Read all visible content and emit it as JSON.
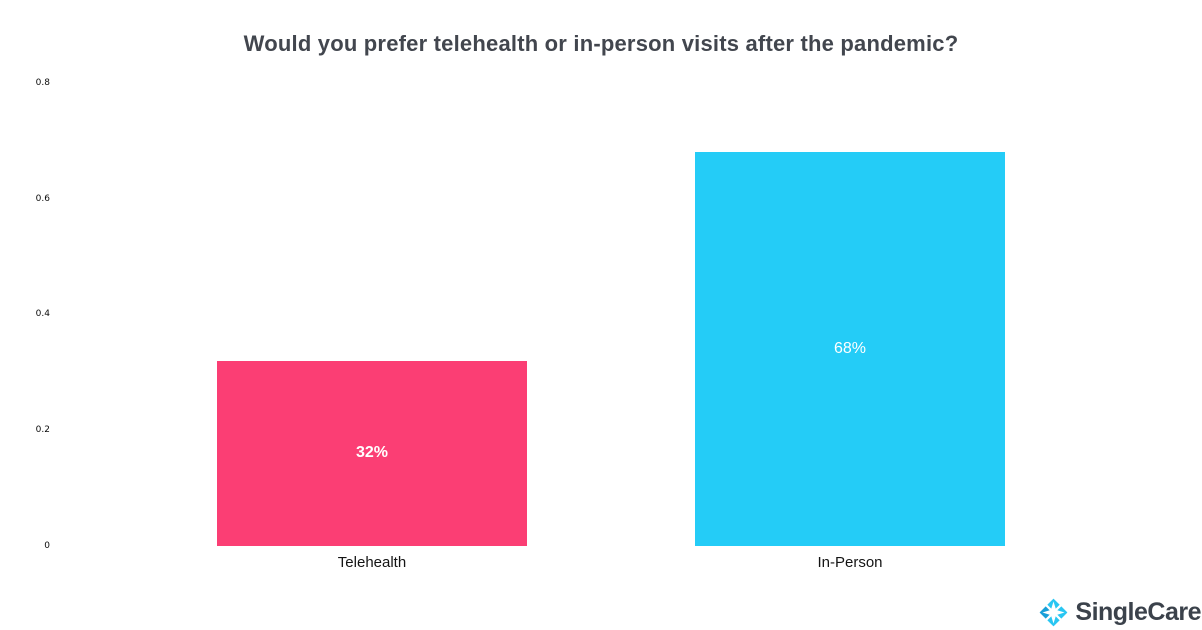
{
  "chart_data": {
    "type": "bar",
    "title": "Would you prefer telehealth or in-person visits after the pandemic?",
    "categories": [
      "Telehealth",
      "In-Person"
    ],
    "values": [
      0.32,
      0.68
    ],
    "bar_labels": [
      "32%",
      "68%"
    ],
    "bar_colors": [
      "#FB3E74",
      "#24CCF7"
    ],
    "bar_label_bold": [
      true,
      false
    ],
    "yticks": [
      "0",
      "0.2",
      "0.4",
      "0.6",
      "0.8"
    ],
    "ylim": [
      0,
      0.8
    ],
    "xlabel": "",
    "ylabel": "",
    "grid": false,
    "legend": false
  },
  "branding": {
    "logo_text": "SingleCare",
    "logo_icon": "singlecare-compass-icon",
    "logo_text_color": "#3B424B",
    "icon_color_primary": "#29C6F2",
    "icon_color_secondary": "#189FD8"
  }
}
